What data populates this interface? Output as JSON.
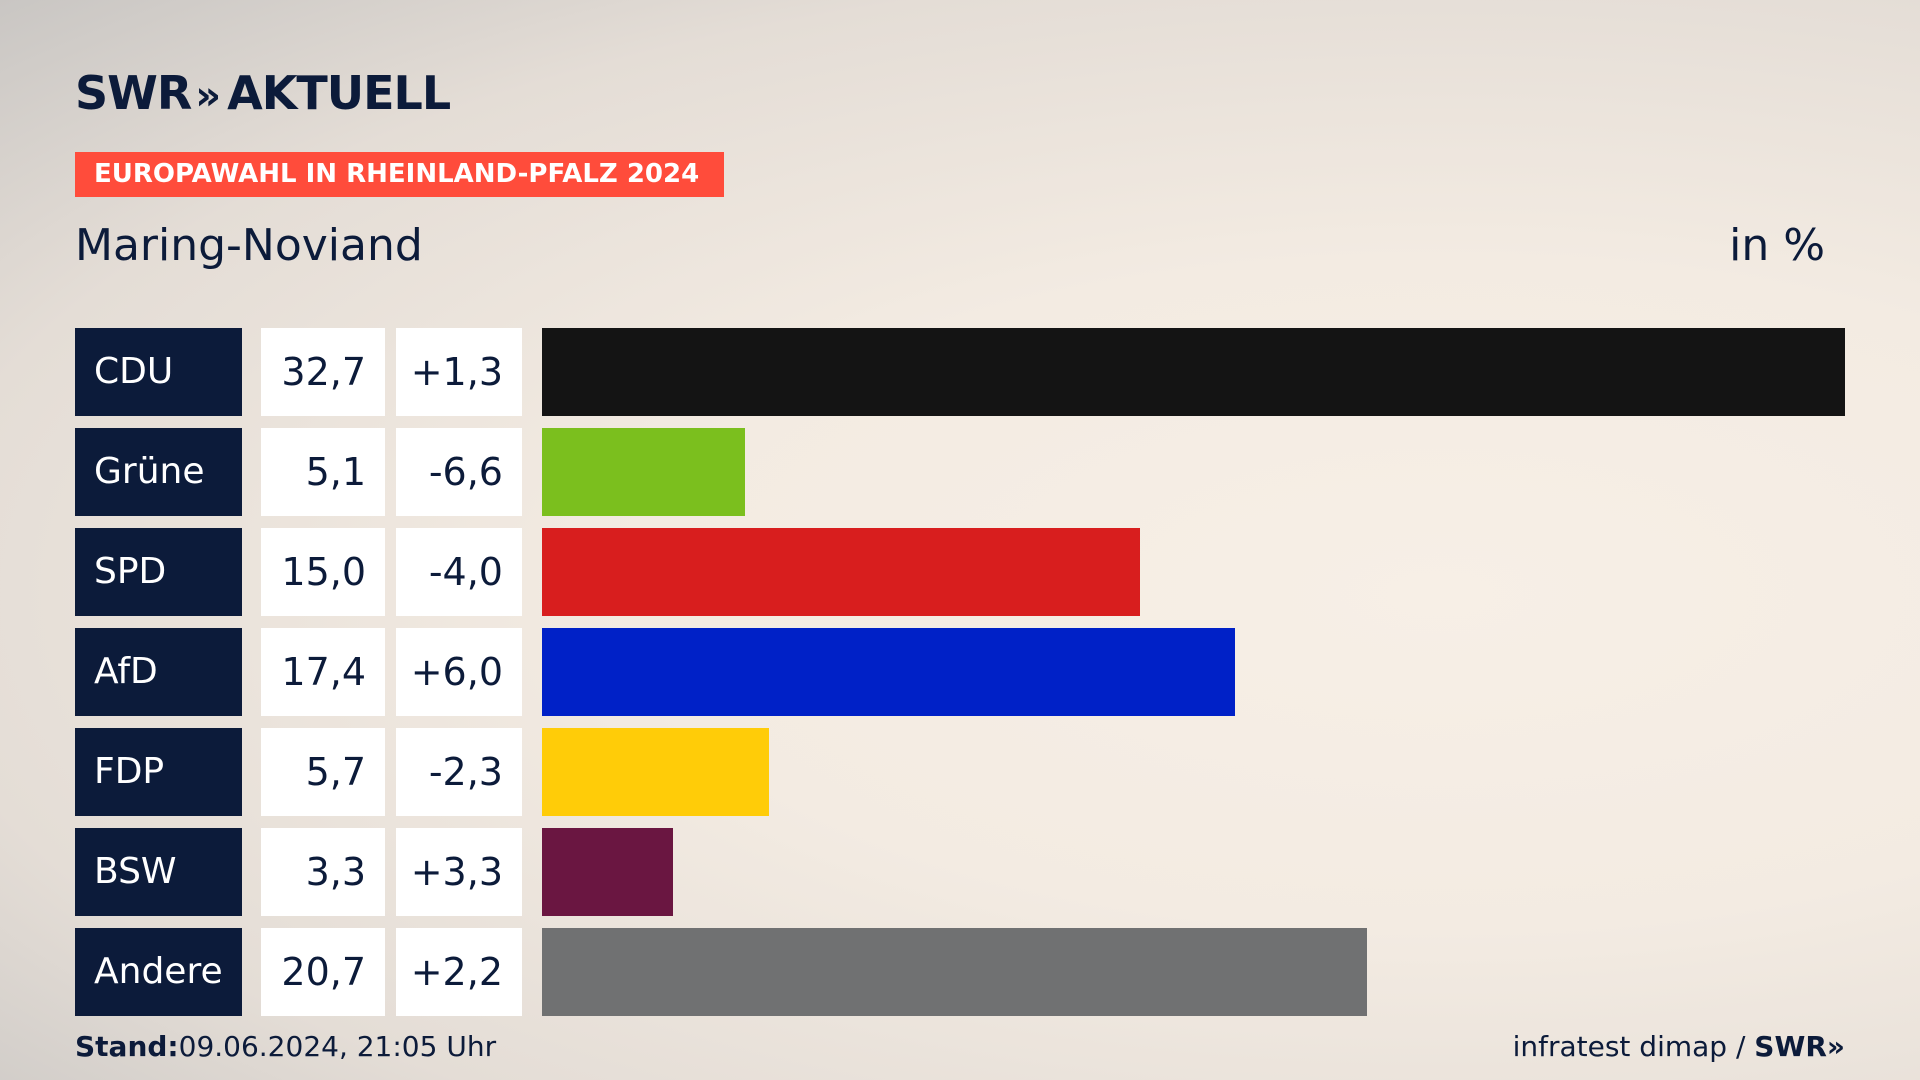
{
  "brand": {
    "swr": "SWR",
    "chevrons": "»",
    "aktuell": "AKTUELL"
  },
  "tag": "EUROPAWAHL IN RHEINLAND-PFALZ 2024",
  "place": "Maring-Noviand",
  "unit": "in %",
  "footer": {
    "stand_label": "Stand:",
    "stand_value": "09.06.2024, 21:05 Uhr",
    "source": "infratest dimap / ",
    "source_brand": "SWR»"
  },
  "chart_data": {
    "type": "bar",
    "orientation": "horizontal",
    "categories": [
      "CDU",
      "Grüne",
      "SPD",
      "AfD",
      "FDP",
      "BSW",
      "Andere"
    ],
    "values": [
      32.7,
      5.1,
      15.0,
      17.4,
      5.7,
      3.3,
      20.7
    ],
    "value_labels": [
      "32,7",
      "5,1",
      "15,0",
      "17,4",
      "5,7",
      "3,3",
      "20,7"
    ],
    "diff_labels": [
      "+1,3",
      "-6,6",
      "-4,0",
      "+6,0",
      "-2,3",
      "+3,3",
      "+2,2"
    ],
    "colors": [
      "#141414",
      "#7bbf1e",
      "#d81e1e",
      "#0021c7",
      "#ffcc08",
      "#6a1641",
      "#707172"
    ],
    "xlim": [
      0,
      32.7
    ]
  }
}
